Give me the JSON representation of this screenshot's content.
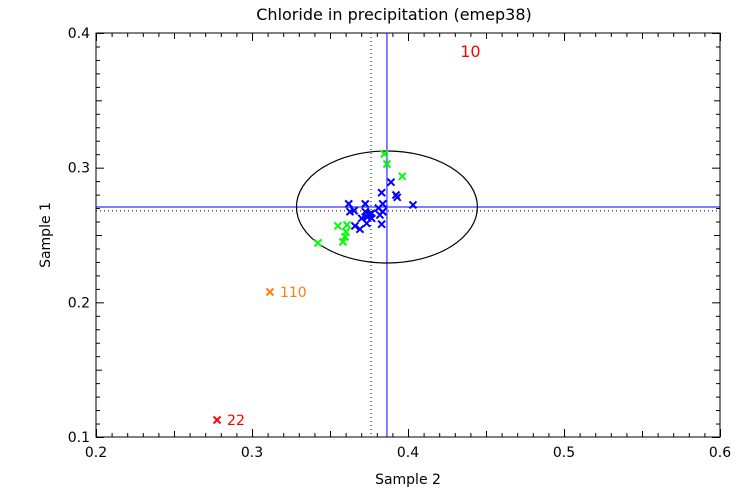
{
  "chart_data": {
    "type": "scatter",
    "title": "Chloride in precipitation (emep38)",
    "xlabel": "Sample 2",
    "ylabel": "Sample 1",
    "xlim": [
      0.2,
      0.6
    ],
    "ylim": [
      0.1,
      0.4
    ],
    "xticks": [
      "0.2",
      "0.3",
      "0.4",
      "0.5",
      "0.6"
    ],
    "yticks": [
      "0.1",
      "0.2",
      "0.3",
      "0.4"
    ],
    "grid": false,
    "reference_lines": {
      "solid": {
        "x": 0.3865,
        "y": 0.2708,
        "color": "#0000ff"
      },
      "dotted": {
        "x": 0.3763,
        "y": 0.2679,
        "color": "#000000"
      }
    },
    "ellipse": {
      "center": [
        0.3865,
        0.2708
      ],
      "semi_axis_x": 0.058,
      "semi_axis_y": 0.0416
    },
    "series": [
      {
        "color": "#0000ff",
        "points": [
          [
            0.3891,
            0.2892
          ],
          [
            0.3831,
            0.2814
          ],
          [
            0.3923,
            0.2797
          ],
          [
            0.3931,
            0.278
          ],
          [
            0.4032,
            0.2723
          ],
          [
            0.362,
            0.2731
          ],
          [
            0.3726,
            0.2731
          ],
          [
            0.3838,
            0.2731
          ],
          [
            0.3628,
            0.2673
          ],
          [
            0.3654,
            0.2681
          ],
          [
            0.3726,
            0.2673
          ],
          [
            0.3838,
            0.2673
          ],
          [
            0.3756,
            0.2656
          ],
          [
            0.3767,
            0.2661
          ],
          [
            0.3703,
            0.2624
          ],
          [
            0.3739,
            0.2632
          ],
          [
            0.3767,
            0.2624
          ],
          [
            0.382,
            0.2649
          ],
          [
            0.3735,
            0.2587
          ],
          [
            0.366,
            0.2567
          ],
          [
            0.3692,
            0.2543
          ],
          [
            0.3831,
            0.258
          ],
          [
            0.3735,
            0.264
          ],
          [
            0.381,
            0.27
          ]
        ]
      },
      {
        "color": "#00ff00",
        "points": [
          [
            0.3848,
            0.3102
          ],
          [
            0.3865,
            0.3027
          ],
          [
            0.3963,
            0.2936
          ],
          [
            0.3551,
            0.2567
          ],
          [
            0.3609,
            0.2575
          ],
          [
            0.3603,
            0.2523
          ],
          [
            0.3596,
            0.2486
          ],
          [
            0.3583,
            0.2449
          ],
          [
            0.3423,
            0.2441
          ]
        ]
      }
    ],
    "labeled_points": [
      {
        "label": "110",
        "x": 0.3115,
        "y": 0.2077,
        "color": "#ff7f00"
      },
      {
        "label": "22",
        "x": 0.2776,
        "y": 0.1127,
        "color": "#ff0000"
      }
    ],
    "off_scale_labels": [
      {
        "label": "10",
        "x": 0.44,
        "color": "#ff0000",
        "position": "top"
      }
    ]
  }
}
